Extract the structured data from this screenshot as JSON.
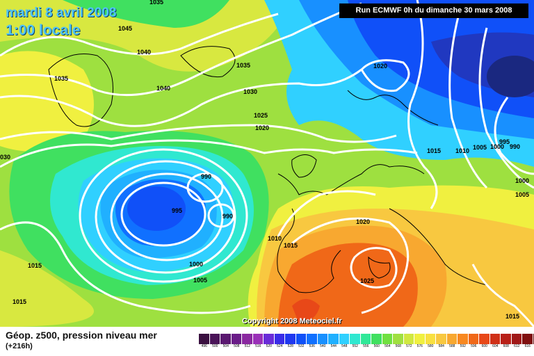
{
  "header": {
    "date": "mardi 8 avril 2008",
    "time": "1:00 locale",
    "run": "Run ECMWF 0h du dimanche 30 mars 2008"
  },
  "copyright": "Copyright 2008 Meteociel.fr",
  "footer": {
    "title": "Géop. z500, pression niveau mer",
    "subtitle": "(+216h)"
  },
  "legend": [
    {
      "label": "496",
      "color": "#3a1040"
    },
    {
      "label": "500",
      "color": "#4a1458"
    },
    {
      "label": "504",
      "color": "#5a1870"
    },
    {
      "label": "508",
      "color": "#6a1c88"
    },
    {
      "label": "512",
      "color": "#8a28a0"
    },
    {
      "label": "516",
      "color": "#9a30b8"
    },
    {
      "label": "520",
      "color": "#6a2cd8"
    },
    {
      "label": "524",
      "color": "#3a2ce8"
    },
    {
      "label": "528",
      "color": "#2038f0"
    },
    {
      "label": "532",
      "color": "#1050f8"
    },
    {
      "label": "536",
      "color": "#1070ff"
    },
    {
      "label": "540",
      "color": "#1890ff"
    },
    {
      "label": "544",
      "color": "#20b0ff"
    },
    {
      "label": "548",
      "color": "#30d0ff"
    },
    {
      "label": "552",
      "color": "#30e8d0"
    },
    {
      "label": "556",
      "color": "#30e898"
    },
    {
      "label": "560",
      "color": "#40e060"
    },
    {
      "label": "564",
      "color": "#70e040"
    },
    {
      "label": "568",
      "color": "#a0e040"
    },
    {
      "label": "572",
      "color": "#d0e840"
    },
    {
      "label": "576",
      "color": "#f0f040"
    },
    {
      "label": "580",
      "color": "#f8e040"
    },
    {
      "label": "584",
      "color": "#f8c840"
    },
    {
      "label": "588",
      "color": "#f8a830"
    },
    {
      "label": "592",
      "color": "#f88820"
    },
    {
      "label": "596",
      "color": "#f06818"
    },
    {
      "label": "600",
      "color": "#e84818"
    },
    {
      "label": "604",
      "color": "#d03018"
    },
    {
      "label": "608",
      "color": "#b82018"
    },
    {
      "label": "612",
      "color": "#a01818"
    },
    {
      "label": "616",
      "color": "#801010"
    },
    {
      "label": "620",
      "color": "#600808"
    }
  ],
  "isobars": [
    {
      "label": "1035",
      "key": "a"
    },
    {
      "label": "1045",
      "key": "b"
    },
    {
      "label": "1040",
      "key": "c"
    },
    {
      "label": "1035",
      "key": "d"
    },
    {
      "label": "1040",
      "key": "e"
    },
    {
      "label": "1035",
      "key": "f"
    },
    {
      "label": "1030",
      "key": "g"
    },
    {
      "label": "1025",
      "key": "h"
    },
    {
      "label": "1020",
      "key": "i"
    },
    {
      "label": "1020",
      "key": "j"
    },
    {
      "label": "1015",
      "key": "k"
    },
    {
      "label": "1010",
      "key": "l"
    },
    {
      "label": "1005",
      "key": "m"
    },
    {
      "label": "1000",
      "key": "n"
    },
    {
      "label": "995",
      "key": "o"
    },
    {
      "label": "990",
      "key": "p"
    },
    {
      "label": "1000",
      "key": "q"
    },
    {
      "label": "1005",
      "key": "r"
    },
    {
      "label": "030",
      "key": "s"
    },
    {
      "label": "990",
      "key": "t"
    },
    {
      "label": "995",
      "key": "u"
    },
    {
      "label": "990",
      "key": "v"
    },
    {
      "label": "1000",
      "key": "w"
    },
    {
      "label": "1005",
      "key": "x"
    },
    {
      "label": "1010",
      "key": "y"
    },
    {
      "label": "1015",
      "key": "z"
    },
    {
      "label": "1020",
      "key": "aa"
    },
    {
      "label": "1025",
      "key": "ab"
    },
    {
      "label": "1015",
      "key": "ac"
    },
    {
      "label": "1015",
      "key": "ad"
    },
    {
      "label": "1015",
      "key": "ae"
    }
  ]
}
